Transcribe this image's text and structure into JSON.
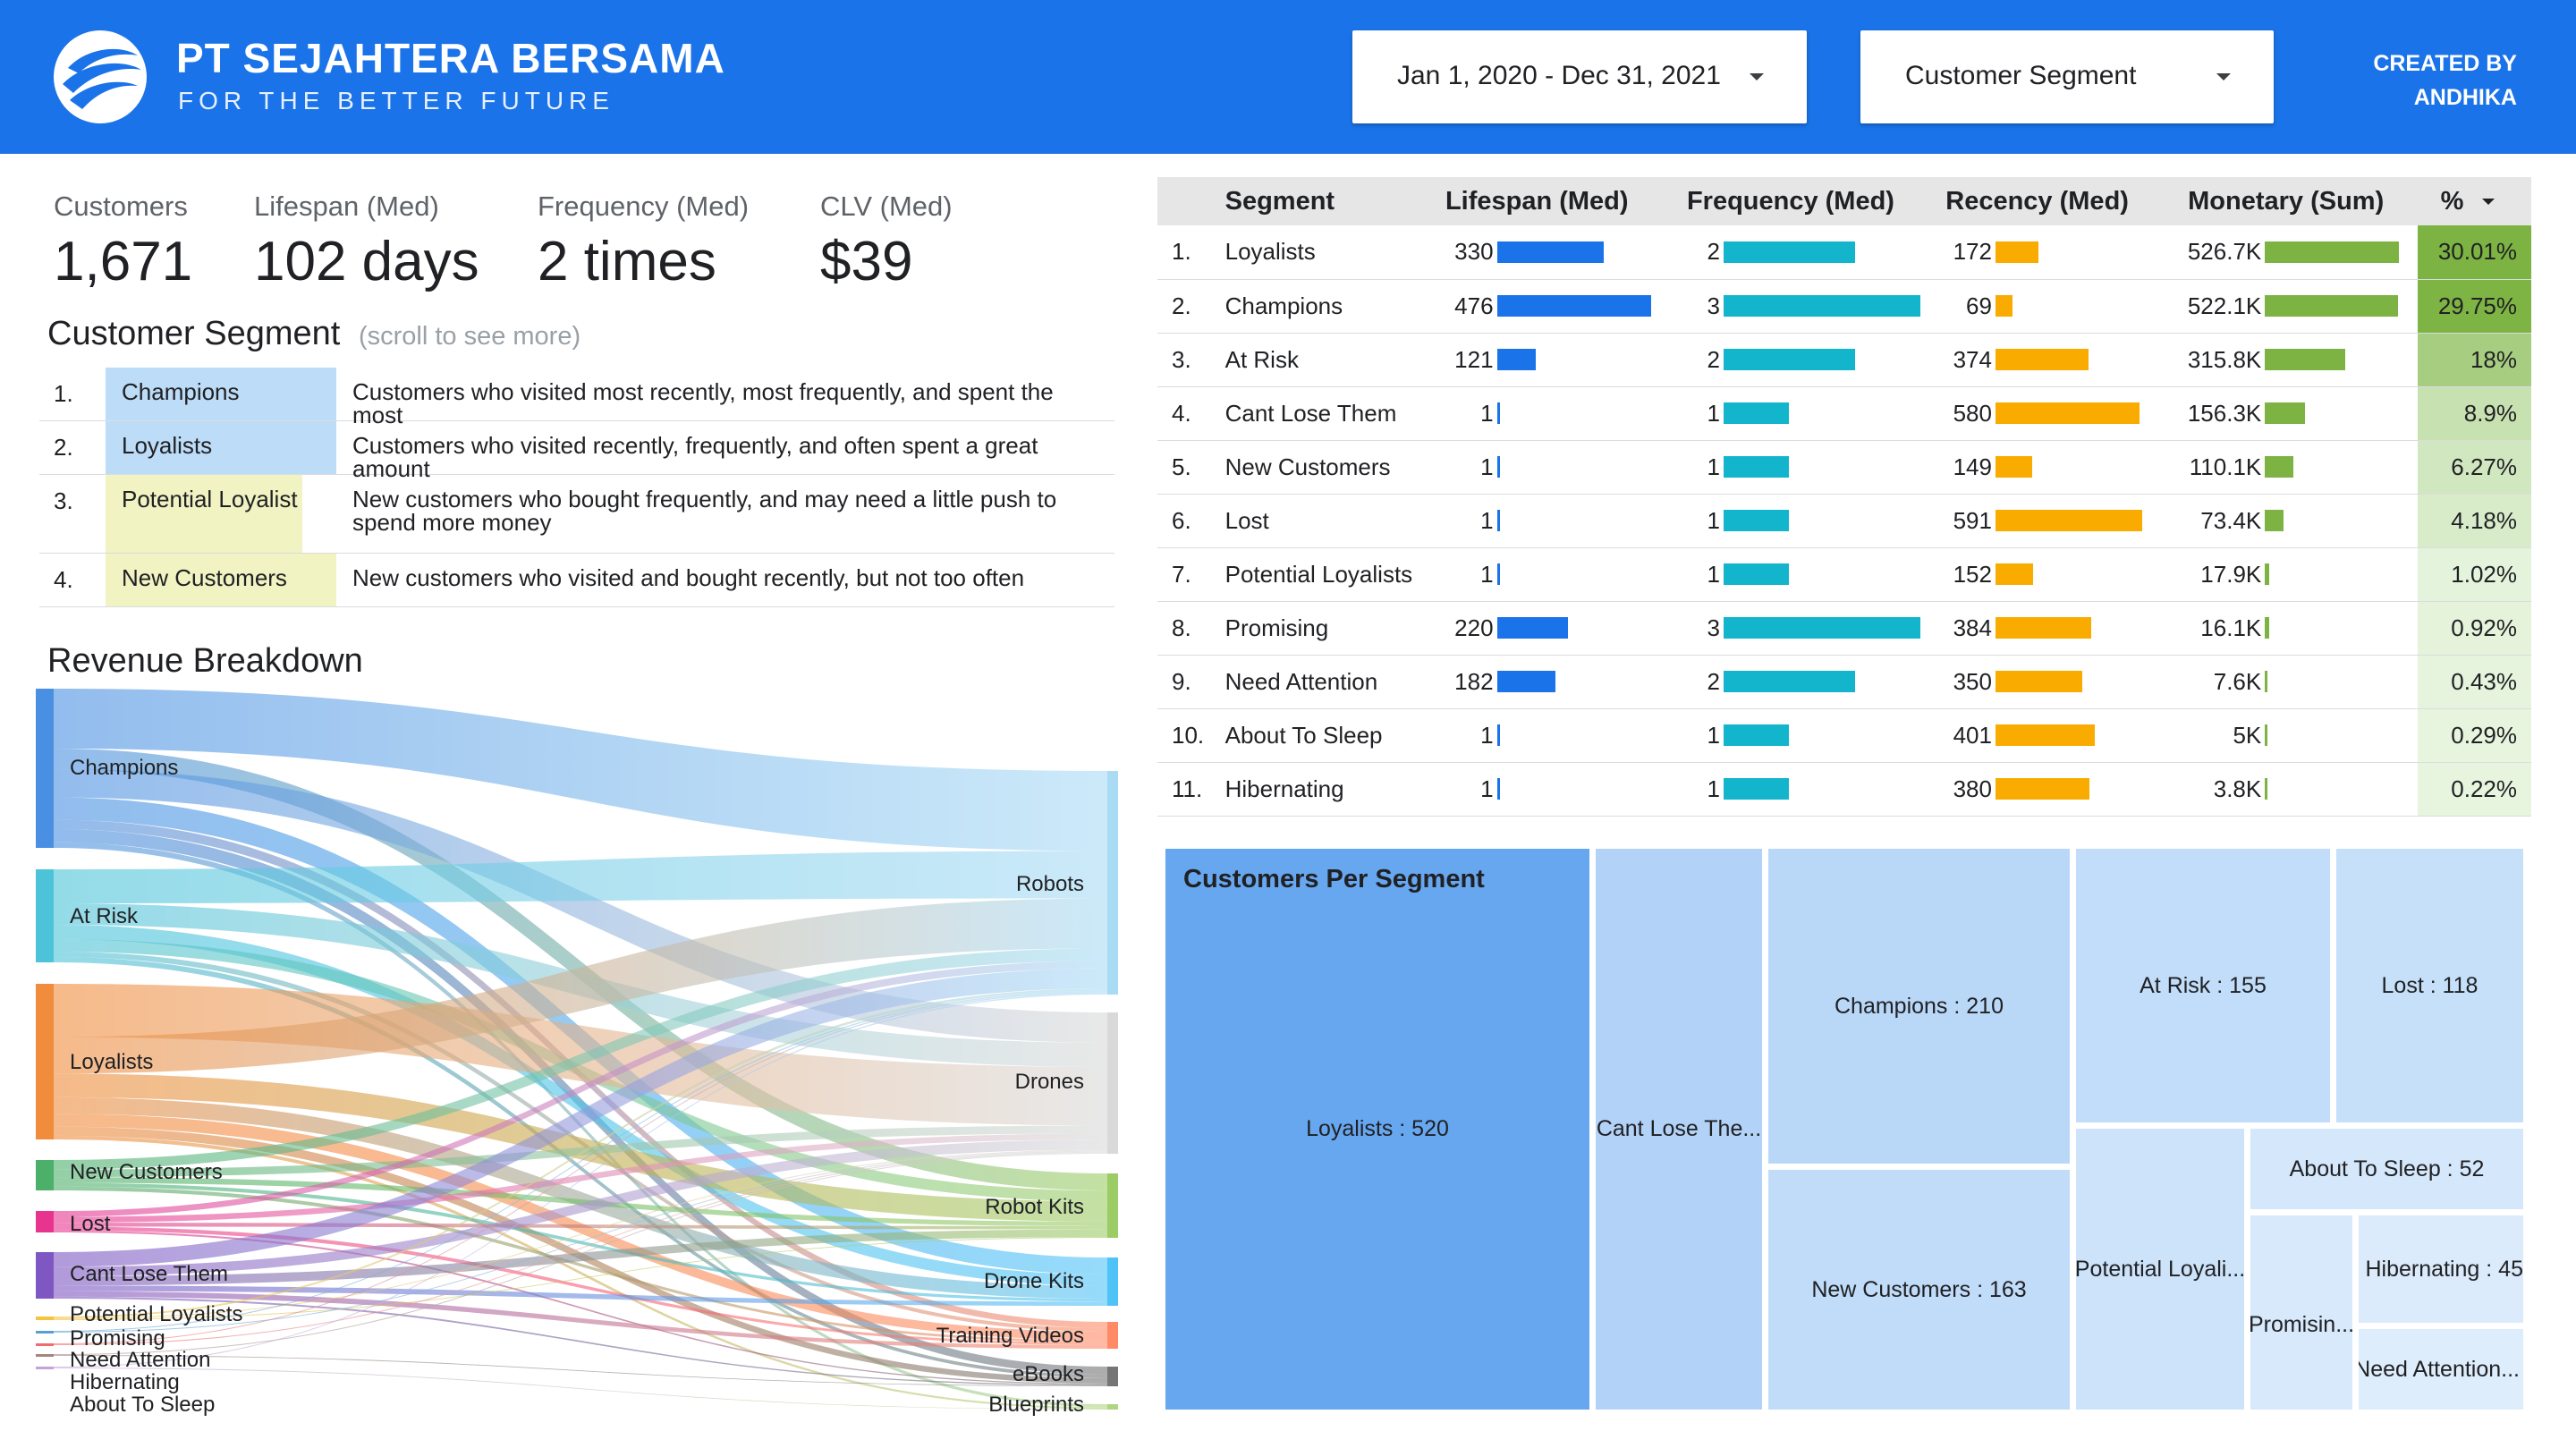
{
  "header": {
    "brand_name": "PT SEJAHTERA BERSAMA",
    "tagline": "FOR THE BETTER FUTURE",
    "date_range": "Jan 1, 2020 - Dec 31, 2021",
    "segment_filter": "Customer Segment",
    "created_by_line1": "CREATED BY",
    "created_by_line2": "ANDHIKA",
    "colors": {
      "brand": "#1a73e8"
    }
  },
  "kpis": [
    {
      "label": "Customers",
      "value": "1,671"
    },
    {
      "label": "Lifespan (Med)",
      "value": "102 days"
    },
    {
      "label": "Frequency (Med)",
      "value": "2 times"
    },
    {
      "label": "CLV (Med)",
      "value": "$39"
    }
  ],
  "segment_definitions": {
    "title": "Customer Segment",
    "hint": "(scroll to see more)",
    "rows": [
      {
        "num": "1.",
        "name": "Champions",
        "description": "Customers who visited most recently, most frequently, and spent the most",
        "color": "#bcdcf7"
      },
      {
        "num": "2.",
        "name": "Loyalists",
        "description": "Customers who visited recently, frequently, and often spent a great amount",
        "color": "#bcdcf7"
      },
      {
        "num": "3.",
        "name": "Potential Loyalist",
        "description": "New customers who bought frequently, and may need a little push to spend more money",
        "color": "#f1f3c2"
      },
      {
        "num": "4.",
        "name": "New Customers",
        "description": "New customers who visited and bought recently, but not too often",
        "color": "#f1f3c2"
      }
    ]
  },
  "revenue_breakdown": {
    "title": "Revenue Breakdown",
    "sources": [
      {
        "name": "Champions",
        "color": "#4a90e2"
      },
      {
        "name": "At Risk",
        "color": "#4cc3d9"
      },
      {
        "name": "Loyalists",
        "color": "#f08c3c"
      },
      {
        "name": "New Customers",
        "color": "#4caf6a"
      },
      {
        "name": "Lost",
        "color": "#e8348f"
      },
      {
        "name": "Cant Lose Them",
        "color": "#7e57c2"
      },
      {
        "name": "Potential Loyalists",
        "color": "#f6c33d"
      },
      {
        "name": "Promising",
        "color": "#5a9fd4"
      },
      {
        "name": "Need Attention",
        "color": "#ef6c6c"
      },
      {
        "name": "Hibernating",
        "color": "#a1887f"
      },
      {
        "name": "About To Sleep",
        "color": "#c5a3d9"
      }
    ],
    "targets": [
      {
        "name": "Robots",
        "color": "#a9dbf5"
      },
      {
        "name": "Drones",
        "color": "#d9d9d9"
      },
      {
        "name": "Robot Kits",
        "color": "#9ccc65"
      },
      {
        "name": "Drone Kits",
        "color": "#4fc3f7"
      },
      {
        "name": "Training Videos",
        "color": "#ff8a65"
      },
      {
        "name": "eBooks",
        "color": "#757575"
      },
      {
        "name": "Blueprints",
        "color": "#aed581"
      }
    ]
  },
  "rfm_table": {
    "headers": [
      "Segment",
      "Lifespan (Med)",
      "Frequency (Med)",
      "Recency (Med)",
      "Monetary (Sum)",
      "%"
    ],
    "colors": {
      "lifespan": "#1a73e8",
      "frequency": "#12b5cb",
      "recency": "#f9ab00",
      "monetary": "#7cb342"
    },
    "rows": [
      {
        "num": "1.",
        "segment": "Loyalists",
        "lifespan": 330,
        "frequency": 2,
        "recency": 172,
        "monetary": "526.7K",
        "monetary_value": 526.7,
        "pct": "30.01%",
        "pct_value": 30.01
      },
      {
        "num": "2.",
        "segment": "Champions",
        "lifespan": 476,
        "frequency": 3,
        "recency": 69,
        "monetary": "522.1K",
        "monetary_value": 522.1,
        "pct": "29.75%",
        "pct_value": 29.75
      },
      {
        "num": "3.",
        "segment": "At Risk",
        "lifespan": 121,
        "frequency": 2,
        "recency": 374,
        "monetary": "315.8K",
        "monetary_value": 315.8,
        "pct": "18%",
        "pct_value": 18
      },
      {
        "num": "4.",
        "segment": "Cant Lose Them",
        "lifespan": 1,
        "frequency": 1,
        "recency": 580,
        "monetary": "156.3K",
        "monetary_value": 156.3,
        "pct": "8.9%",
        "pct_value": 8.9
      },
      {
        "num": "5.",
        "segment": "New Customers",
        "lifespan": 1,
        "frequency": 1,
        "recency": 149,
        "monetary": "110.1K",
        "monetary_value": 110.1,
        "pct": "6.27%",
        "pct_value": 6.27
      },
      {
        "num": "6.",
        "segment": "Lost",
        "lifespan": 1,
        "frequency": 1,
        "recency": 591,
        "monetary": "73.4K",
        "monetary_value": 73.4,
        "pct": "4.18%",
        "pct_value": 4.18
      },
      {
        "num": "7.",
        "segment": "Potential Loyalists",
        "lifespan": 1,
        "frequency": 1,
        "recency": 152,
        "monetary": "17.9K",
        "monetary_value": 17.9,
        "pct": "1.02%",
        "pct_value": 1.02
      },
      {
        "num": "8.",
        "segment": "Promising",
        "lifespan": 220,
        "frequency": 3,
        "recency": 384,
        "monetary": "16.1K",
        "monetary_value": 16.1,
        "pct": "0.92%",
        "pct_value": 0.92
      },
      {
        "num": "9.",
        "segment": "Need Attention",
        "lifespan": 182,
        "frequency": 2,
        "recency": 350,
        "monetary": "7.6K",
        "monetary_value": 7.6,
        "pct": "0.43%",
        "pct_value": 0.43
      },
      {
        "num": "10.",
        "segment": "About To Sleep",
        "lifespan": 1,
        "frequency": 1,
        "recency": 401,
        "monetary": "5K",
        "monetary_value": 5,
        "pct": "0.29%",
        "pct_value": 0.29
      },
      {
        "num": "11.",
        "segment": "Hibernating",
        "lifespan": 1,
        "frequency": 1,
        "recency": 380,
        "monetary": "3.8K",
        "monetary_value": 3.8,
        "pct": "0.22%",
        "pct_value": 0.22
      }
    ]
  },
  "chart_data": {
    "type": "treemap",
    "title": "Customers Per Segment",
    "items": [
      {
        "label": "Loyalists : 520",
        "name": "Loyalists",
        "value": 520
      },
      {
        "label": "Cant Lose The...",
        "name": "Cant Lose Them",
        "value": null
      },
      {
        "label": "Champions : 210",
        "name": "Champions",
        "value": 210
      },
      {
        "label": "New Customers : 163",
        "name": "New Customers",
        "value": 163
      },
      {
        "label": "At Risk : 155",
        "name": "At Risk",
        "value": 155
      },
      {
        "label": "Lost : 118",
        "name": "Lost",
        "value": 118
      },
      {
        "label": "Potential Loyali...",
        "name": "Potential Loyalists",
        "value": null
      },
      {
        "label": "About To Sleep : 52",
        "name": "About To Sleep",
        "value": 52
      },
      {
        "label": "Promisin...",
        "name": "Promising",
        "value": null
      },
      {
        "label": "Hibernating : 45",
        "name": "Hibernating",
        "value": 45
      },
      {
        "label": "Need Attention...",
        "name": "Need Attention",
        "value": null
      }
    ],
    "colors": [
      "#67a7f0",
      "#b2d3f7",
      "#b9d8f8",
      "#c0dcf9",
      "#c2ddf9",
      "#c6e0f9",
      "#cde3fa",
      "#d4e7fb",
      "#d7e9fb",
      "#dbebfb",
      "#deedfc"
    ]
  }
}
